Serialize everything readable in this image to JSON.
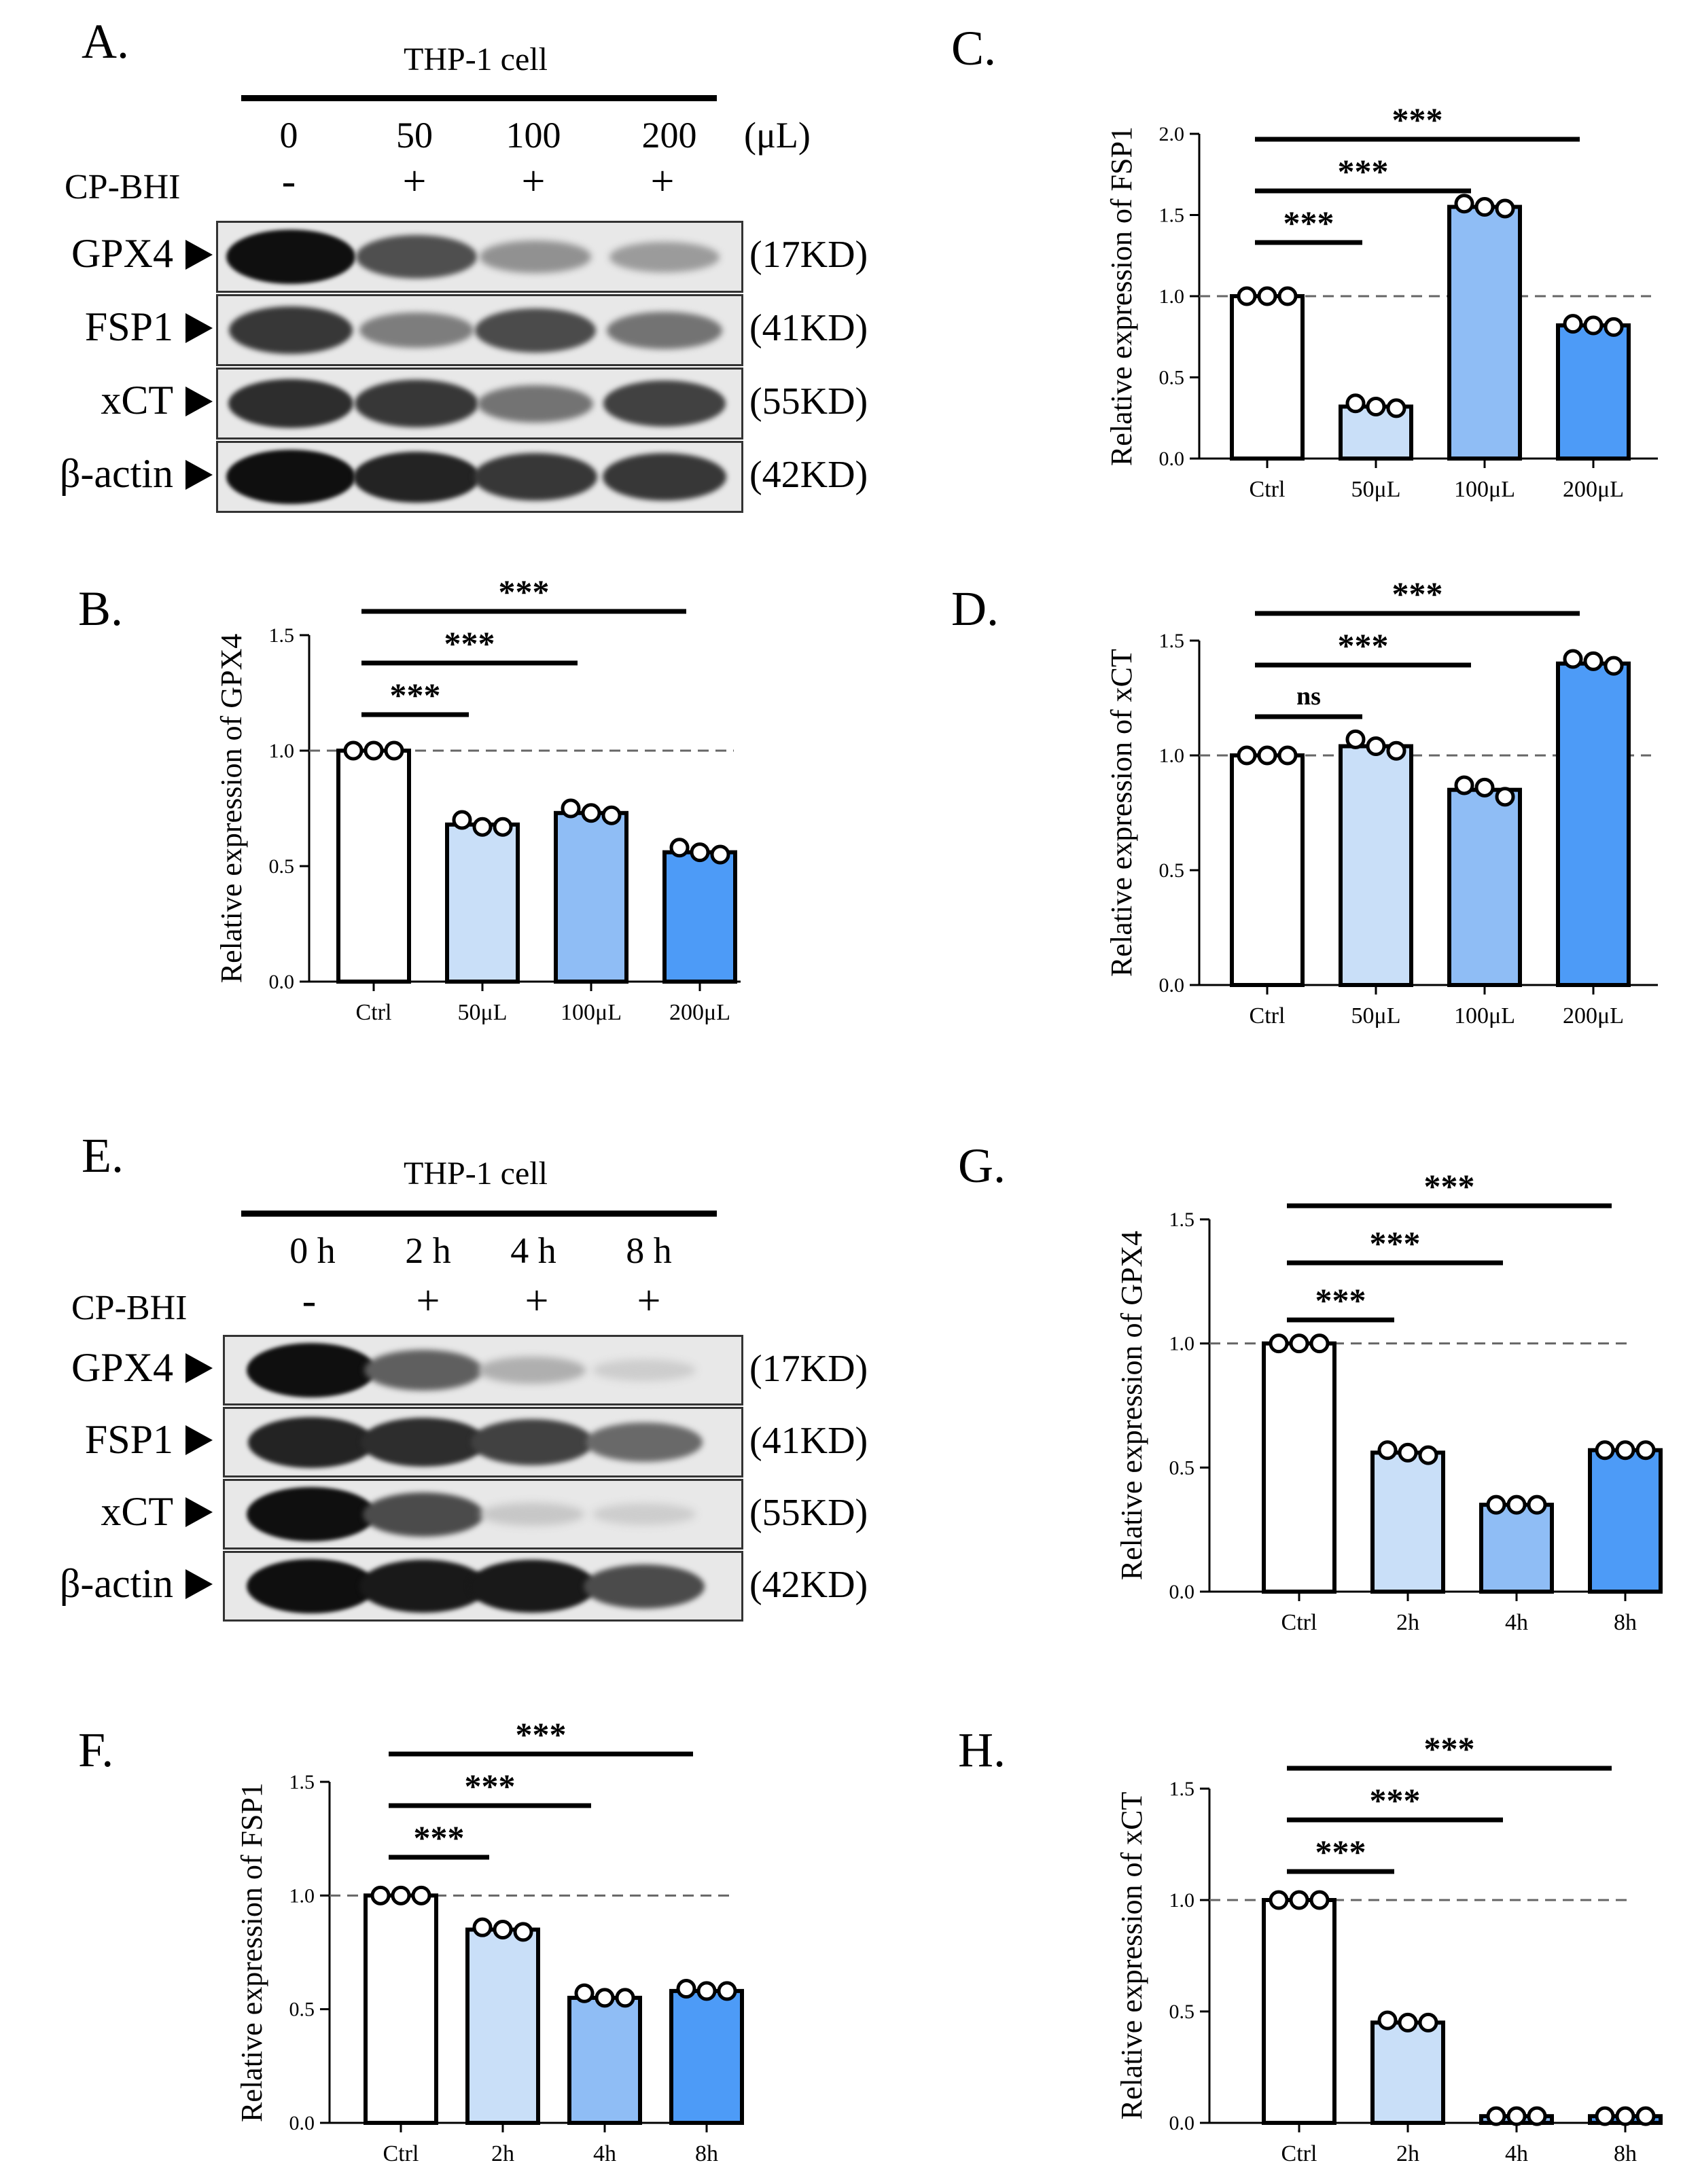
{
  "blot_a": {
    "letter": "A.",
    "title": "THP-1 cell",
    "lanes": [
      "0",
      "50",
      "100",
      "200"
    ],
    "unit": "(μL)",
    "treatment_label": "CP-BHI",
    "treatment_marks": [
      "-",
      "+",
      "+",
      "+"
    ],
    "proteins": [
      {
        "name": "GPX4",
        "kd": "(17KD)",
        "intensity": [
          1.0,
          0.68,
          0.35,
          0.3
        ]
      },
      {
        "name": "FSP1",
        "kd": "(41KD)",
        "intensity": [
          0.8,
          0.45,
          0.7,
          0.5
        ]
      },
      {
        "name": "xCT",
        "kd": "(55KD)",
        "intensity": [
          0.85,
          0.8,
          0.5,
          0.75
        ]
      },
      {
        "name": "β-actin",
        "kd": "(42KD)",
        "intensity": [
          1.0,
          0.9,
          0.8,
          0.8
        ]
      }
    ]
  },
  "blot_e": {
    "letter": "E.",
    "title": "THP-1 cell",
    "lanes": [
      "0 h",
      "2 h",
      "4 h",
      "8 h"
    ],
    "treatment_label": "CP-BHI",
    "treatment_marks": [
      "-",
      "+",
      "+",
      "+"
    ],
    "proteins": [
      {
        "name": "GPX4",
        "kd": "(17KD)",
        "intensity": [
          1.0,
          0.6,
          0.2,
          0.05
        ]
      },
      {
        "name": "FSP1",
        "kd": "(41KD)",
        "intensity": [
          0.9,
          0.85,
          0.75,
          0.55
        ]
      },
      {
        "name": "xCT",
        "kd": "(55KD)",
        "intensity": [
          1.0,
          0.7,
          0.08,
          0.05
        ]
      },
      {
        "name": "β-actin",
        "kd": "(42KD)",
        "intensity": [
          1.0,
          0.95,
          0.95,
          0.7
        ]
      }
    ]
  },
  "colors": {
    "ctrl": "#ffffff",
    "level1": "#c9dff8",
    "level2": "#8fbdf5",
    "level3": "#4d9bf7"
  },
  "chart_data": [
    {
      "letter": "B.",
      "type": "bar",
      "categories": [
        "Ctrl",
        "50μL",
        "100μL",
        "200μL"
      ],
      "values": [
        1.0,
        0.68,
        0.73,
        0.56
      ],
      "points": [
        [
          1.0,
          1.0,
          1.0
        ],
        [
          0.7,
          0.67,
          0.67
        ],
        [
          0.75,
          0.73,
          0.72
        ],
        [
          0.58,
          0.56,
          0.55
        ]
      ],
      "ylabel": "Relative expression of GPX4",
      "ylim": [
        0,
        1.5
      ],
      "yticks": [
        "0.0",
        "0.5",
        "1.0",
        "1.5"
      ],
      "ref_line": 1.0,
      "sig": [
        {
          "from": 0,
          "to": 1,
          "label": "***"
        },
        {
          "from": 0,
          "to": 2,
          "label": "***"
        },
        {
          "from": 0,
          "to": 3,
          "label": "***"
        }
      ]
    },
    {
      "letter": "C.",
      "type": "bar",
      "categories": [
        "Ctrl",
        "50μL",
        "100μL",
        "200μL"
      ],
      "values": [
        1.0,
        0.32,
        1.55,
        0.82
      ],
      "points": [
        [
          1.0,
          1.0,
          1.0
        ],
        [
          0.34,
          0.32,
          0.31
        ],
        [
          1.57,
          1.55,
          1.54
        ],
        [
          0.83,
          0.82,
          0.81
        ]
      ],
      "ylabel": "Relative expression of FSP1",
      "ylim": [
        0,
        2.0
      ],
      "yticks": [
        "0.0",
        "0.5",
        "1.0",
        "1.5",
        "2.0"
      ],
      "ref_line": 1.0,
      "sig": [
        {
          "from": 0,
          "to": 1,
          "label": "***"
        },
        {
          "from": 0,
          "to": 2,
          "label": "***"
        },
        {
          "from": 0,
          "to": 3,
          "label": "***"
        }
      ]
    },
    {
      "letter": "D.",
      "type": "bar",
      "categories": [
        "Ctrl",
        "50μL",
        "100μL",
        "200μL"
      ],
      "values": [
        1.0,
        1.04,
        0.85,
        1.4
      ],
      "points": [
        [
          1.0,
          1.0,
          1.0
        ],
        [
          1.07,
          1.04,
          1.02
        ],
        [
          0.87,
          0.86,
          0.82
        ],
        [
          1.42,
          1.41,
          1.39
        ]
      ],
      "ylabel": "Relative expression of xCT",
      "ylim": [
        0,
        1.5
      ],
      "yticks": [
        "0.0",
        "0.5",
        "1.0",
        "1.5"
      ],
      "ref_line": 1.0,
      "sig": [
        {
          "from": 0,
          "to": 1,
          "label": "ns"
        },
        {
          "from": 0,
          "to": 2,
          "label": "***"
        },
        {
          "from": 0,
          "to": 3,
          "label": "***"
        }
      ]
    },
    {
      "letter": "F.",
      "type": "bar",
      "categories": [
        "Ctrl",
        "2h",
        "4h",
        "8h"
      ],
      "values": [
        1.0,
        0.85,
        0.55,
        0.58
      ],
      "points": [
        [
          1.0,
          1.0,
          1.0
        ],
        [
          0.86,
          0.85,
          0.84
        ],
        [
          0.57,
          0.55,
          0.55
        ],
        [
          0.59,
          0.58,
          0.58
        ]
      ],
      "ylabel": "Relative expression of FSP1",
      "ylim": [
        0,
        1.5
      ],
      "yticks": [
        "0.0",
        "0.5",
        "1.0",
        "1.5"
      ],
      "ref_line": 1.0,
      "sig": [
        {
          "from": 0,
          "to": 1,
          "label": "***"
        },
        {
          "from": 0,
          "to": 2,
          "label": "***"
        },
        {
          "from": 0,
          "to": 3,
          "label": "***"
        }
      ]
    },
    {
      "letter": "G.",
      "type": "bar",
      "categories": [
        "Ctrl",
        "2h",
        "4h",
        "8h"
      ],
      "values": [
        1.0,
        0.56,
        0.35,
        0.57
      ],
      "points": [
        [
          1.0,
          1.0,
          1.0
        ],
        [
          0.57,
          0.56,
          0.55
        ],
        [
          0.35,
          0.35,
          0.35
        ],
        [
          0.57,
          0.57,
          0.57
        ]
      ],
      "ylabel": "Relative expression of GPX4",
      "ylim": [
        0,
        1.5
      ],
      "yticks": [
        "0.0",
        "0.5",
        "1.0",
        "1.5"
      ],
      "ref_line": 1.0,
      "sig": [
        {
          "from": 0,
          "to": 1,
          "label": "***"
        },
        {
          "from": 0,
          "to": 2,
          "label": "***"
        },
        {
          "from": 0,
          "to": 3,
          "label": "***"
        }
      ]
    },
    {
      "letter": "H.",
      "type": "bar",
      "categories": [
        "Ctrl",
        "2h",
        "4h",
        "8h"
      ],
      "values": [
        1.0,
        0.45,
        0.03,
        0.03
      ],
      "points": [
        [
          1.0,
          1.0,
          1.0
        ],
        [
          0.46,
          0.45,
          0.45
        ],
        [
          0.03,
          0.03,
          0.03
        ],
        [
          0.03,
          0.03,
          0.03
        ]
      ],
      "ylabel": "Relative expression of xCT",
      "ylim": [
        0,
        1.5
      ],
      "yticks": [
        "0.0",
        "0.5",
        "1.0",
        "1.5"
      ],
      "ref_line": 1.0,
      "sig": [
        {
          "from": 0,
          "to": 1,
          "label": "***"
        },
        {
          "from": 0,
          "to": 2,
          "label": "***"
        },
        {
          "from": 0,
          "to": 3,
          "label": "***"
        }
      ]
    }
  ]
}
